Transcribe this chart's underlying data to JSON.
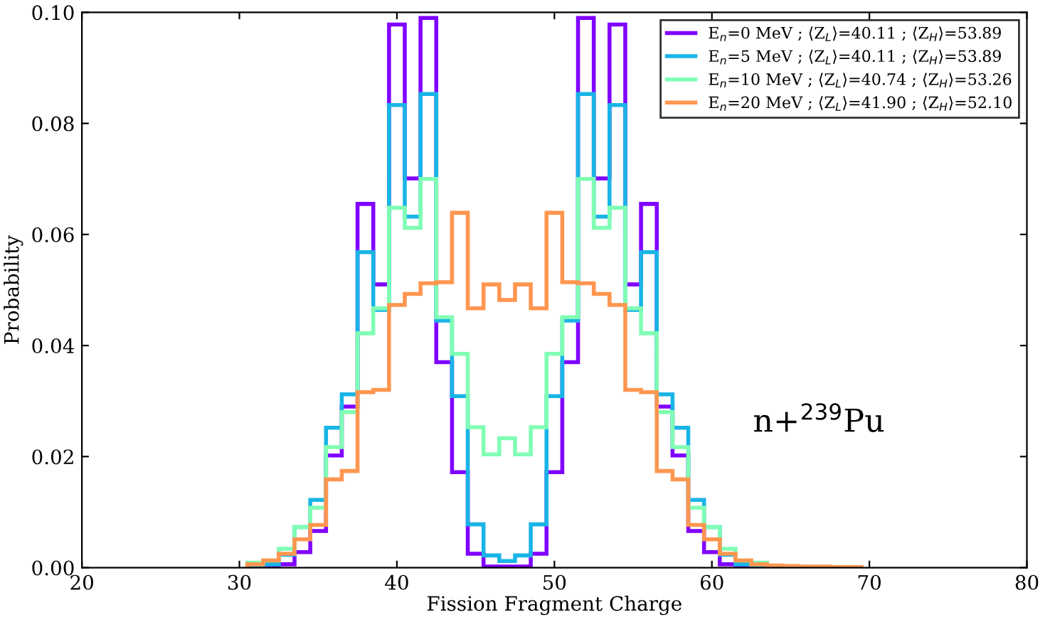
{
  "chart_data": {
    "type": "histogram",
    "xlabel": "Fission Fragment Charge",
    "ylabel": "Probability",
    "bins": [
      30.5,
      31.5,
      32.5,
      33.5,
      34.5,
      35.5,
      36.5,
      37.5,
      38.5,
      39.5,
      40.5,
      41.5,
      42.5,
      43.5,
      44.5,
      45.5,
      46.5,
      47.5,
      48.5,
      49.5,
      50.5,
      51.5,
      52.5,
      53.5,
      54.5,
      55.5,
      56.5,
      57.5,
      58.5,
      59.5,
      60.5,
      61.5,
      62.5,
      63.5,
      64.5,
      65.5,
      66.5,
      67.5,
      68.5,
      69.5
    ],
    "series": [
      {
        "name": "E$_{n}$=0 MeV ; ⟨Z$_{L}$⟩=40.11 ; ⟨Z$_{H}$⟩=53.89",
        "color": "#8000ff",
        "values": [
          0,
          0.0002,
          0.0006,
          0.0028,
          0.0066,
          0.0202,
          0.029,
          0.0655,
          0.051,
          0.0978,
          0.0701,
          0.099,
          0.037,
          0.0172,
          0.0025,
          0.0002,
          0.0002,
          0.0002,
          0.0025,
          0.0172,
          0.037,
          0.099,
          0.0701,
          0.0978,
          0.051,
          0.0655,
          0.029,
          0.0202,
          0.0066,
          0.0028,
          0.0006,
          0.0002,
          0,
          0,
          0,
          0,
          0,
          0,
          0
        ]
      },
      {
        "name": "E$_{n}$=5 MeV ; ⟨Z$_{L}$⟩=40.11 ; ⟨Z$_{H}$⟩=53.89",
        "color": "#19b4e6",
        "values": [
          0.0001,
          0.0006,
          0.0023,
          0.0073,
          0.0122,
          0.0252,
          0.0312,
          0.0568,
          0.0464,
          0.0833,
          0.0632,
          0.0853,
          0.0445,
          0.0309,
          0.0078,
          0.0022,
          0.0012,
          0.0022,
          0.0078,
          0.0309,
          0.0445,
          0.0853,
          0.0632,
          0.0833,
          0.0464,
          0.0568,
          0.0312,
          0.0252,
          0.0122,
          0.0073,
          0.0023,
          0.0006,
          0.0001,
          0,
          0,
          0,
          0,
          0,
          0
        ]
      },
      {
        "name": "E$_{n}$=10 MeV ; ⟨Z$_{L}$⟩=40.74 ; ⟨Z$_{H}$⟩=53.26",
        "color": "#80ffb4",
        "values": [
          0.0009,
          0.0013,
          0.0034,
          0.0073,
          0.0108,
          0.0217,
          0.028,
          0.0422,
          0.0467,
          0.0648,
          0.0612,
          0.07,
          0.0451,
          0.0385,
          0.0253,
          0.0204,
          0.0233,
          0.0204,
          0.0253,
          0.0385,
          0.0451,
          0.07,
          0.0612,
          0.0648,
          0.0467,
          0.0422,
          0.028,
          0.0217,
          0.0108,
          0.0073,
          0.0034,
          0.0013,
          0.0009,
          0.0003,
          0.0002,
          0,
          0,
          0,
          0
        ]
      },
      {
        "name": "E$_{n}$=20 MeV ; ⟨Z$_{L}$⟩=41.90 ; ⟨Z$_{H}$⟩=52.10",
        "color": "#ff9650",
        "values": [
          0.0006,
          0.0013,
          0.0025,
          0.0051,
          0.0077,
          0.0159,
          0.0174,
          0.0316,
          0.032,
          0.0473,
          0.0493,
          0.0512,
          0.0514,
          0.0639,
          0.0467,
          0.051,
          0.0482,
          0.051,
          0.0467,
          0.0639,
          0.0514,
          0.0512,
          0.0493,
          0.0473,
          0.032,
          0.0316,
          0.0174,
          0.0159,
          0.0077,
          0.0051,
          0.0025,
          0.0013,
          0.0006,
          0.0004,
          0.0003,
          0.0002,
          0.0002,
          0.0001,
          0.0001
        ]
      }
    ],
    "xlim": [
      20,
      80
    ],
    "xticks": [
      20,
      30,
      40,
      50,
      60,
      70,
      80
    ],
    "ylim": [
      0,
      0.1
    ],
    "yticks": [
      {
        "value": 0,
        "label": "0.00"
      },
      {
        "value": 0.02,
        "label": "0.02"
      },
      {
        "value": 0.04,
        "label": "0.04"
      },
      {
        "value": 0.06,
        "label": "0.06"
      },
      {
        "value": 0.08,
        "label": "0.08"
      },
      {
        "value": 0.1,
        "label": "0.10"
      }
    ],
    "legend": "top right",
    "grid": false,
    "annotations": [
      "n+$^{239}$Pu"
    ]
  }
}
